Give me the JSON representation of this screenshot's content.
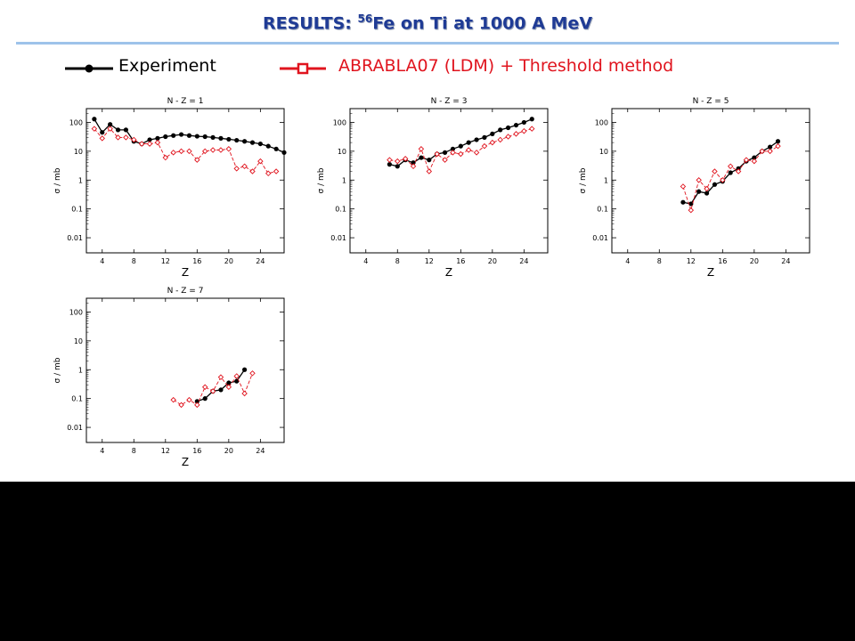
{
  "slide": {
    "title_prefix": "RESULTS: ",
    "title_sup": "56",
    "title_suffix": "Fe on Ti at 1000 A MeV"
  },
  "legend": {
    "experiment": {
      "label": "Experiment",
      "color": "#000000",
      "marker": "filled-circle"
    },
    "model": {
      "label": "ABRABLA07 (LDM) + Threshold method",
      "color": "#e0141e",
      "marker": "open-square"
    }
  },
  "chart_data": [
    {
      "type": "scatter",
      "title": "N - Z = 1",
      "xlabel": "Z",
      "ylabel": "σ / mb",
      "yscale": "log",
      "xlim": [
        2,
        27
      ],
      "ylim": [
        0.003,
        300
      ],
      "xticks": [
        4,
        8,
        12,
        16,
        20,
        24
      ],
      "yticks": [
        {
          "v": 100,
          "l": "100"
        },
        {
          "v": 10,
          "l": "10"
        },
        {
          "v": 1,
          "l": "1"
        },
        {
          "v": 0.1,
          "l": "0.1"
        },
        {
          "v": 0.01,
          "l": "0.01"
        }
      ],
      "series": [
        {
          "name": "Experiment",
          "style": "solid-filled-circle",
          "color": "#000000",
          "points": [
            [
              3,
              130
            ],
            [
              4,
              45
            ],
            [
              5,
              85
            ],
            [
              6,
              55
            ],
            [
              7,
              55
            ],
            [
              8,
              22
            ],
            [
              9,
              18
            ],
            [
              10,
              25
            ],
            [
              11,
              28
            ],
            [
              12,
              32
            ],
            [
              13,
              35
            ],
            [
              14,
              38
            ],
            [
              15,
              35
            ],
            [
              16,
              33
            ],
            [
              17,
              32
            ],
            [
              18,
              30
            ],
            [
              19,
              28
            ],
            [
              20,
              26
            ],
            [
              21,
              24
            ],
            [
              22,
              22
            ],
            [
              23,
              20
            ],
            [
              24,
              18
            ],
            [
              25,
              15
            ],
            [
              26,
              12
            ],
            [
              27,
              9
            ]
          ]
        },
        {
          "name": "ABRABLA07 (LDM) + Threshold method",
          "style": "dashed-open-diamond",
          "color": "#e0141e",
          "points": [
            [
              3,
              60
            ],
            [
              4,
              28
            ],
            [
              5,
              60
            ],
            [
              6,
              30
            ],
            [
              7,
              30
            ],
            [
              8,
              25
            ],
            [
              9,
              18
            ],
            [
              10,
              18
            ],
            [
              11,
              20
            ],
            [
              12,
              6
            ],
            [
              13,
              9
            ],
            [
              14,
              10
            ],
            [
              15,
              10
            ],
            [
              16,
              5
            ],
            [
              17,
              10
            ],
            [
              18,
              11
            ],
            [
              19,
              11
            ],
            [
              20,
              12
            ],
            [
              21,
              2.5
            ],
            [
              22,
              3
            ],
            [
              23,
              2
            ],
            [
              24,
              4.5
            ],
            [
              25,
              1.7
            ],
            [
              26,
              2
            ]
          ]
        }
      ]
    },
    {
      "type": "scatter",
      "title": "N - Z = 3",
      "xlabel": "Z",
      "ylabel": "σ / mb",
      "yscale": "log",
      "xlim": [
        2,
        27
      ],
      "ylim": [
        0.003,
        300
      ],
      "xticks": [
        4,
        8,
        12,
        16,
        20,
        24
      ],
      "yticks": [
        {
          "v": 100,
          "l": "100"
        },
        {
          "v": 10,
          "l": "10"
        },
        {
          "v": 1,
          "l": "1"
        },
        {
          "v": 0.1,
          "l": "0.1"
        },
        {
          "v": 0.01,
          "l": "0.01"
        }
      ],
      "series": [
        {
          "name": "Experiment",
          "style": "solid-filled-circle",
          "color": "#000000",
          "points": [
            [
              7,
              3.5
            ],
            [
              8,
              3
            ],
            [
              9,
              5
            ],
            [
              10,
              4
            ],
            [
              11,
              6
            ],
            [
              12,
              5
            ],
            [
              13,
              8
            ],
            [
              14,
              9
            ],
            [
              15,
              12
            ],
            [
              16,
              15
            ],
            [
              17,
              20
            ],
            [
              18,
              25
            ],
            [
              19,
              30
            ],
            [
              20,
              40
            ],
            [
              21,
              55
            ],
            [
              22,
              65
            ],
            [
              23,
              80
            ],
            [
              24,
              100
            ],
            [
              25,
              130
            ]
          ]
        },
        {
          "name": "ABRABLA07 (LDM) + Threshold method",
          "style": "dashed-open-diamond",
          "color": "#e0141e",
          "points": [
            [
              7,
              5
            ],
            [
              8,
              4.5
            ],
            [
              9,
              5.5
            ],
            [
              10,
              3
            ],
            [
              11,
              12
            ],
            [
              12,
              2
            ],
            [
              13,
              8
            ],
            [
              14,
              5
            ],
            [
              15,
              9
            ],
            [
              16,
              8
            ],
            [
              17,
              11
            ],
            [
              18,
              9
            ],
            [
              19,
              15
            ],
            [
              20,
              20
            ],
            [
              21,
              25
            ],
            [
              22,
              32
            ],
            [
              23,
              40
            ],
            [
              24,
              50
            ],
            [
              25,
              60
            ]
          ]
        }
      ]
    },
    {
      "type": "scatter",
      "title": "N - Z = 5",
      "xlabel": "Z",
      "ylabel": "σ / mb",
      "yscale": "log",
      "xlim": [
        2,
        27
      ],
      "ylim": [
        0.003,
        300
      ],
      "xticks": [
        4,
        8,
        12,
        16,
        20,
        24
      ],
      "yticks": [
        {
          "v": 100,
          "l": "100"
        },
        {
          "v": 10,
          "l": "10"
        },
        {
          "v": 1,
          "l": "1"
        },
        {
          "v": 0.1,
          "l": "0.1"
        },
        {
          "v": 0.01,
          "l": "0.01"
        }
      ],
      "series": [
        {
          "name": "Experiment",
          "style": "solid-filled-circle",
          "color": "#000000",
          "points": [
            [
              11,
              0.17
            ],
            [
              12,
              0.15
            ],
            [
              13,
              0.4
            ],
            [
              14,
              0.35
            ],
            [
              15,
              0.7
            ],
            [
              16,
              0.9
            ],
            [
              17,
              1.8
            ],
            [
              18,
              2.5
            ],
            [
              19,
              4.5
            ],
            [
              20,
              6
            ],
            [
              21,
              10
            ],
            [
              22,
              14
            ],
            [
              23,
              22
            ]
          ]
        },
        {
          "name": "ABRABLA07 (LDM) + Threshold method",
          "style": "dashed-open-diamond",
          "color": "#e0141e",
          "points": [
            [
              11,
              0.6
            ],
            [
              12,
              0.09
            ],
            [
              13,
              1
            ],
            [
              14,
              0.5
            ],
            [
              15,
              2
            ],
            [
              16,
              1
            ],
            [
              17,
              3
            ],
            [
              18,
              2
            ],
            [
              19,
              5
            ],
            [
              20,
              4.5
            ],
            [
              21,
              10
            ],
            [
              22,
              10
            ],
            [
              23,
              15
            ]
          ]
        }
      ]
    },
    {
      "type": "scatter",
      "title": "N - Z = 7",
      "xlabel": "Z",
      "ylabel": "σ / mb",
      "yscale": "log",
      "xlim": [
        2,
        27
      ],
      "ylim": [
        0.003,
        300
      ],
      "xticks": [
        4,
        8,
        12,
        16,
        20,
        24
      ],
      "yticks": [
        {
          "v": 100,
          "l": "100"
        },
        {
          "v": 10,
          "l": "10"
        },
        {
          "v": 1,
          "l": "1"
        },
        {
          "v": 0.1,
          "l": "0.1"
        },
        {
          "v": 0.01,
          "l": "0.01"
        }
      ],
      "series": [
        {
          "name": "Experiment",
          "style": "solid-filled-circle",
          "color": "#000000",
          "points": [
            [
              16,
              0.08
            ],
            [
              17,
              0.1
            ],
            [
              18,
              0.18
            ],
            [
              19,
              0.2
            ],
            [
              20,
              0.35
            ],
            [
              21,
              0.4
            ],
            [
              22,
              1
            ]
          ]
        },
        {
          "name": "ABRABLA07 (LDM) + Threshold method",
          "style": "dashed-open-diamond",
          "color": "#e0141e",
          "points": [
            [
              13,
              0.09
            ],
            [
              14,
              0.06
            ],
            [
              15,
              0.09
            ],
            [
              16,
              0.06
            ],
            [
              17,
              0.25
            ],
            [
              18,
              0.18
            ],
            [
              19,
              0.55
            ],
            [
              20,
              0.25
            ],
            [
              21,
              0.6
            ],
            [
              22,
              0.15
            ],
            [
              23,
              0.75
            ]
          ]
        }
      ]
    }
  ]
}
